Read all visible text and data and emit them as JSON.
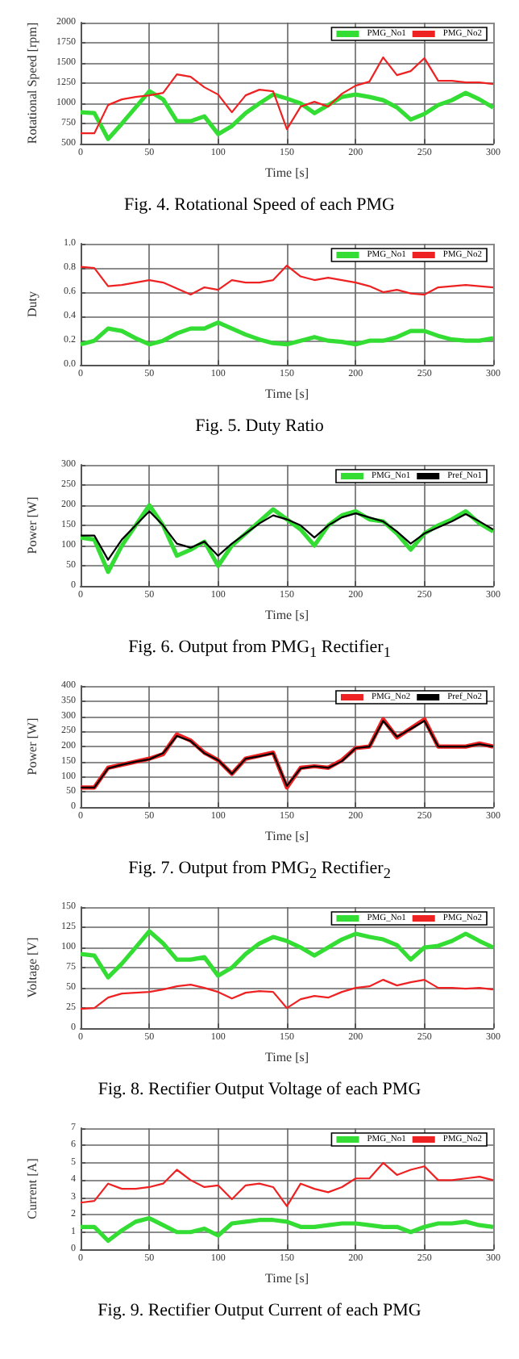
{
  "chart_data": [
    {
      "type": "line",
      "title": "Fig. 4. Rotational Speed of each PMG",
      "xlabel": "Time [s]",
      "ylabel": "Rotational Speed [rpm]",
      "x": [
        0,
        10,
        20,
        30,
        40,
        50,
        60,
        70,
        80,
        90,
        100,
        110,
        120,
        130,
        140,
        150,
        160,
        170,
        180,
        190,
        200,
        210,
        220,
        230,
        240,
        250,
        260,
        270,
        280,
        290,
        300
      ],
      "xlim": [
        0,
        300
      ],
      "xticks": [
        0,
        50,
        100,
        150,
        200,
        250,
        300
      ],
      "ylim": [
        500,
        2000
      ],
      "yticks": [
        500,
        750,
        1000,
        1250,
        1500,
        1750,
        2000
      ],
      "grid": true,
      "legend": "top right",
      "series": [
        {
          "name": "PMG_No1",
          "color": "#33dd33",
          "values": [
            890,
            880,
            560,
            750,
            950,
            1150,
            1050,
            780,
            780,
            840,
            620,
            720,
            880,
            1000,
            1110,
            1060,
            1000,
            880,
            980,
            1080,
            1110,
            1080,
            1040,
            950,
            800,
            870,
            980,
            1040,
            1130,
            1050,
            950
          ]
        },
        {
          "name": "PMG_No2",
          "color": "#ee2222",
          "values": [
            630,
            630,
            980,
            1050,
            1080,
            1100,
            1130,
            1360,
            1330,
            1200,
            1110,
            890,
            1100,
            1170,
            1150,
            680,
            960,
            1020,
            960,
            1120,
            1220,
            1270,
            1570,
            1350,
            1400,
            1560,
            1280,
            1280,
            1260,
            1260,
            1240
          ]
        }
      ]
    },
    {
      "type": "line",
      "title": "Fig. 5. Duty Ratio",
      "xlabel": "Time [s]",
      "ylabel": "Duty",
      "x": [
        0,
        10,
        20,
        30,
        40,
        50,
        60,
        70,
        80,
        90,
        100,
        110,
        120,
        130,
        140,
        150,
        160,
        170,
        180,
        190,
        200,
        210,
        220,
        230,
        240,
        250,
        260,
        270,
        280,
        290,
        300
      ],
      "xlim": [
        0,
        300
      ],
      "xticks": [
        0,
        50,
        100,
        150,
        200,
        250,
        300
      ],
      "ylim": [
        0,
        1
      ],
      "yticks": [
        {
          "value": 0,
          "label": "0.0"
        },
        0.2,
        0.4,
        0.6,
        0.8,
        {
          "value": 1,
          "label": "1.0"
        }
      ],
      "grid": true,
      "legend": "top right",
      "series": [
        {
          "name": "PMG_No1",
          "color": "#33dd33",
          "values": [
            0.17,
            0.2,
            0.3,
            0.28,
            0.22,
            0.17,
            0.2,
            0.26,
            0.3,
            0.3,
            0.35,
            0.3,
            0.25,
            0.21,
            0.18,
            0.17,
            0.2,
            0.23,
            0.2,
            0.19,
            0.17,
            0.2,
            0.2,
            0.23,
            0.28,
            0.28,
            0.24,
            0.21,
            0.2,
            0.2,
            0.22
          ]
        },
        {
          "name": "PMG_No2",
          "color": "#ee2222",
          "values": [
            0.81,
            0.8,
            0.65,
            0.66,
            0.68,
            0.7,
            0.68,
            0.63,
            0.58,
            0.64,
            0.62,
            0.7,
            0.68,
            0.68,
            0.7,
            0.82,
            0.73,
            0.7,
            0.72,
            0.7,
            0.68,
            0.65,
            0.6,
            0.62,
            0.59,
            0.58,
            0.64,
            0.65,
            0.66,
            0.65,
            0.64
          ]
        }
      ]
    },
    {
      "type": "line",
      "title": "Fig. 6. Output from PMG$_{1}$ Rectifier$_{1}$",
      "xlabel": "Time [s]",
      "ylabel": "Power [W]",
      "x": [
        0,
        10,
        20,
        30,
        40,
        50,
        60,
        70,
        80,
        90,
        100,
        110,
        120,
        130,
        140,
        150,
        160,
        170,
        180,
        190,
        200,
        210,
        220,
        230,
        240,
        250,
        260,
        270,
        280,
        290,
        300
      ],
      "xlim": [
        0,
        300
      ],
      "xticks": [
        0,
        50,
        100,
        150,
        200,
        250,
        300
      ],
      "ylim": [
        0,
        300
      ],
      "yticks": [
        0,
        50,
        100,
        150,
        200,
        250,
        300
      ],
      "grid": true,
      "legend": "top right",
      "series": [
        {
          "name": "PMG_No1",
          "color": "#33dd33",
          "values": [
            120,
            115,
            35,
            100,
            150,
            200,
            150,
            75,
            90,
            110,
            50,
            100,
            130,
            160,
            190,
            165,
            140,
            100,
            150,
            175,
            185,
            165,
            160,
            130,
            90,
            130,
            150,
            165,
            185,
            155,
            135
          ]
        },
        {
          "name": "Pref_No1",
          "color": "#000000",
          "values": [
            125,
            125,
            65,
            115,
            150,
            185,
            150,
            105,
            95,
            110,
            75,
            105,
            130,
            155,
            175,
            165,
            150,
            120,
            150,
            170,
            180,
            170,
            160,
            135,
            105,
            130,
            145,
            160,
            178,
            160,
            140
          ]
        }
      ]
    },
    {
      "type": "line",
      "title": "Fig. 7. Output from PMG$_{2}$ Rectifier$_{2}$",
      "xlabel": "Time [s]",
      "ylabel": "Power [W]",
      "x": [
        0,
        10,
        20,
        30,
        40,
        50,
        60,
        70,
        80,
        90,
        100,
        110,
        120,
        130,
        140,
        150,
        160,
        170,
        180,
        190,
        200,
        210,
        220,
        230,
        240,
        250,
        260,
        270,
        280,
        290,
        300
      ],
      "xlim": [
        0,
        300
      ],
      "xticks": [
        0,
        50,
        100,
        150,
        200,
        250,
        300
      ],
      "ylim": [
        0,
        400
      ],
      "yticks": [
        0,
        50,
        100,
        150,
        200,
        250,
        300,
        350,
        400
      ],
      "grid": true,
      "legend": "top right",
      "series": [
        {
          "name": "PMG_No2",
          "color": "#ee2222",
          "values": [
            65,
            65,
            130,
            140,
            150,
            160,
            175,
            240,
            220,
            180,
            155,
            110,
            160,
            170,
            180,
            65,
            130,
            135,
            130,
            155,
            195,
            200,
            290,
            230,
            260,
            290,
            200,
            200,
            200,
            210,
            200
          ]
        },
        {
          "name": "Pref_No2",
          "color": "#000000",
          "values": [
            65,
            65,
            128,
            140,
            150,
            158,
            178,
            235,
            218,
            178,
            155,
            110,
            160,
            168,
            178,
            70,
            128,
            135,
            130,
            152,
            195,
            200,
            285,
            232,
            258,
            285,
            200,
            200,
            200,
            208,
            200
          ]
        }
      ]
    },
    {
      "type": "line",
      "title": "Fig. 8. Rectifier Output Voltage of each PMG",
      "xlabel": "Time [s]",
      "ylabel": "Voltage [V]",
      "x": [
        0,
        10,
        20,
        30,
        40,
        50,
        60,
        70,
        80,
        90,
        100,
        110,
        120,
        130,
        140,
        150,
        160,
        170,
        180,
        190,
        200,
        210,
        220,
        230,
        240,
        250,
        260,
        270,
        280,
        290,
        300
      ],
      "xlim": [
        0,
        300
      ],
      "xticks": [
        0,
        50,
        100,
        150,
        200,
        250,
        300
      ],
      "ylim": [
        0,
        150
      ],
      "yticks": [
        0,
        25,
        50,
        75,
        100,
        125,
        150
      ],
      "grid": true,
      "legend": "top right",
      "series": [
        {
          "name": "PMG_No1",
          "color": "#33dd33",
          "values": [
            92,
            90,
            63,
            80,
            100,
            120,
            105,
            85,
            85,
            88,
            65,
            75,
            92,
            105,
            113,
            108,
            100,
            90,
            100,
            110,
            117,
            113,
            110,
            103,
            85,
            100,
            102,
            108,
            117,
            108,
            100
          ]
        },
        {
          "name": "PMG_No2",
          "color": "#ee2222",
          "values": [
            24,
            25,
            38,
            43,
            44,
            45,
            48,
            52,
            54,
            50,
            45,
            37,
            44,
            46,
            45,
            25,
            36,
            40,
            38,
            45,
            50,
            52,
            60,
            53,
            57,
            60,
            50,
            50,
            49,
            50,
            48
          ]
        }
      ]
    },
    {
      "type": "line",
      "title": "Fig. 9. Rectifier Output Current of each PMG",
      "xlabel": "Time [s]",
      "ylabel": "Current [A]",
      "x": [
        0,
        10,
        20,
        30,
        40,
        50,
        60,
        70,
        80,
        90,
        100,
        110,
        120,
        130,
        140,
        150,
        160,
        170,
        180,
        190,
        200,
        210,
        220,
        230,
        240,
        250,
        260,
        270,
        280,
        290,
        300
      ],
      "xlim": [
        0,
        300
      ],
      "xticks": [
        0,
        50,
        100,
        150,
        200,
        250,
        300
      ],
      "ylim": [
        0,
        7
      ],
      "yticks": [
        0,
        1,
        2,
        3,
        4,
        5,
        6,
        7
      ],
      "grid": true,
      "legend": "top right",
      "series": [
        {
          "name": "PMG_No1",
          "color": "#33dd33",
          "values": [
            1.3,
            1.3,
            0.5,
            1.1,
            1.6,
            1.8,
            1.4,
            1.0,
            1.0,
            1.2,
            0.8,
            1.5,
            1.6,
            1.7,
            1.7,
            1.6,
            1.3,
            1.3,
            1.4,
            1.5,
            1.5,
            1.4,
            1.3,
            1.3,
            1.0,
            1.3,
            1.5,
            1.5,
            1.6,
            1.4,
            1.3
          ]
        },
        {
          "name": "PMG_No2",
          "color": "#ee2222",
          "values": [
            2.7,
            2.8,
            3.8,
            3.5,
            3.5,
            3.6,
            3.8,
            4.6,
            4.0,
            3.6,
            3.7,
            2.9,
            3.7,
            3.8,
            3.6,
            2.5,
            3.8,
            3.5,
            3.3,
            3.6,
            4.1,
            4.1,
            5.0,
            4.3,
            4.6,
            4.8,
            4.0,
            4.0,
            4.1,
            4.2,
            4.0
          ]
        }
      ]
    }
  ]
}
